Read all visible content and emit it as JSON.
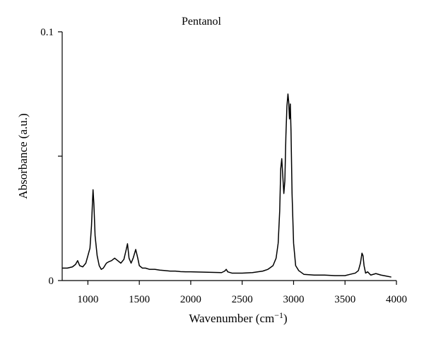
{
  "chart_data": {
    "type": "line",
    "title": "Pentanol",
    "xlabel": "Wavenumber (cm",
    "xlabel_superscript": "−1",
    "xlabel_suffix": ")",
    "ylabel": "Absorbance (a.u.)",
    "xlim": [
      750,
      4000
    ],
    "ylim": [
      0,
      0.1
    ],
    "x_ticks": [
      1000,
      1500,
      2000,
      2500,
      3000,
      3500,
      4000
    ],
    "x_tick_labels": [
      "1000",
      "1500",
      "2000",
      "2500",
      "3000",
      "3500",
      "4000"
    ],
    "y_ticks": [
      0,
      0.05,
      0.1
    ],
    "y_tick_labels": [
      "0",
      "",
      "0.1"
    ],
    "grid": false,
    "legend": "none",
    "series": [
      {
        "color": "#000000",
        "x": [
          750,
          800,
          850,
          880,
          900,
          920,
          950,
          980,
          1000,
          1020,
          1035,
          1045,
          1050,
          1058,
          1070,
          1090,
          1110,
          1130,
          1150,
          1180,
          1200,
          1230,
          1260,
          1290,
          1320,
          1350,
          1370,
          1385,
          1400,
          1420,
          1440,
          1465,
          1485,
          1500,
          1530,
          1560,
          1600,
          1650,
          1700,
          1750,
          1800,
          1850,
          1900,
          1950,
          2000,
          2100,
          2200,
          2300,
          2330,
          2345,
          2360,
          2400,
          2500,
          2600,
          2700,
          2750,
          2800,
          2830,
          2850,
          2865,
          2875,
          2885,
          2895,
          2905,
          2915,
          2925,
          2935,
          2945,
          2952,
          2960,
          2968,
          2975,
          2985,
          3000,
          3020,
          3050,
          3100,
          3200,
          3300,
          3400,
          3500,
          3550,
          3600,
          3630,
          3650,
          3665,
          3675,
          3685,
          3700,
          3720,
          3750,
          3800,
          3850,
          3900,
          3950
        ],
        "y": [
          0.005,
          0.005,
          0.0055,
          0.0065,
          0.008,
          0.006,
          0.0055,
          0.007,
          0.01,
          0.013,
          0.022,
          0.032,
          0.0365,
          0.031,
          0.018,
          0.01,
          0.006,
          0.0045,
          0.005,
          0.007,
          0.0075,
          0.008,
          0.009,
          0.008,
          0.007,
          0.0085,
          0.012,
          0.0148,
          0.009,
          0.007,
          0.009,
          0.0125,
          0.009,
          0.006,
          0.005,
          0.005,
          0.0045,
          0.0045,
          0.0042,
          0.004,
          0.0038,
          0.0038,
          0.0036,
          0.0035,
          0.0035,
          0.0034,
          0.0033,
          0.0032,
          0.0038,
          0.0045,
          0.0035,
          0.003,
          0.003,
          0.0032,
          0.0038,
          0.0045,
          0.006,
          0.009,
          0.015,
          0.028,
          0.045,
          0.049,
          0.042,
          0.035,
          0.04,
          0.058,
          0.07,
          0.075,
          0.072,
          0.065,
          0.071,
          0.06,
          0.035,
          0.015,
          0.006,
          0.004,
          0.0025,
          0.0022,
          0.0022,
          0.002,
          0.002,
          0.0025,
          0.003,
          0.004,
          0.007,
          0.011,
          0.01,
          0.006,
          0.003,
          0.0035,
          0.0022,
          0.0028,
          0.0022,
          0.0018,
          0.0014
        ]
      }
    ]
  }
}
